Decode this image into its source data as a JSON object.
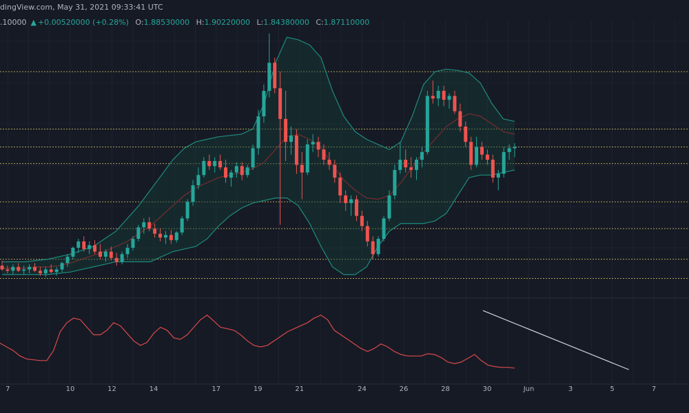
{
  "header": {
    "source": "dingView.com, May 31, 2021 09:33:41 UTC",
    "first_value": ".10000",
    "change": "+0.00520000 (+0.28%)",
    "open_key": "O:",
    "open": "1.88530000",
    "high_key": "H:",
    "high": "1.90220000",
    "low_key": "L:",
    "low": "1.84380000",
    "close_key": "C:",
    "close": "1.87110000"
  },
  "colors": {
    "background": "#161a25",
    "up": "#26a69a",
    "down": "#ef5350",
    "bands": "#1e8c7e",
    "band_fill": "#143b38",
    "middle_band": "#8b2c2c",
    "levels": "#d6c964",
    "oscillator": "#d94a4a",
    "trendline": "#d1d4dc",
    "axis_text": "#b2b5be"
  },
  "chart_data": {
    "type": "candlestick",
    "x_axis": {
      "type": "date",
      "tick_labels": [
        "7",
        "10",
        "12",
        "14",
        "17",
        "19",
        "21",
        "24",
        "26",
        "28",
        "30",
        "Jun",
        "3",
        "5",
        "7"
      ]
    },
    "price_ylim": [
      0.9,
      2.95
    ],
    "horizontal_levels": [
      2.55,
      2.1,
      1.96,
      1.83,
      1.53,
      1.32,
      1.08,
      0.93
    ],
    "candles": [
      [
        1.03,
        1.07,
        0.99,
        1.0
      ],
      [
        1.0,
        1.03,
        0.97,
        0.99
      ],
      [
        0.99,
        1.04,
        0.96,
        1.02
      ],
      [
        1.02,
        1.05,
        0.98,
        0.99
      ],
      [
        0.99,
        1.03,
        0.96,
        1.0
      ],
      [
        1.0,
        1.04,
        0.97,
        1.02
      ],
      [
        1.02,
        1.05,
        0.98,
        0.99
      ],
      [
        0.99,
        1.02,
        0.95,
        0.97
      ],
      [
        0.97,
        1.02,
        0.94,
        1.0
      ],
      [
        1.0,
        1.04,
        0.97,
        0.98
      ],
      [
        0.98,
        1.02,
        0.95,
        1.0
      ],
      [
        1.0,
        1.06,
        0.98,
        1.05
      ],
      [
        1.05,
        1.12,
        1.02,
        1.1
      ],
      [
        1.1,
        1.18,
        1.08,
        1.17
      ],
      [
        1.17,
        1.24,
        1.13,
        1.22
      ],
      [
        1.22,
        1.26,
        1.14,
        1.16
      ],
      [
        1.16,
        1.22,
        1.12,
        1.19
      ],
      [
        1.19,
        1.23,
        1.12,
        1.14
      ],
      [
        1.14,
        1.2,
        1.08,
        1.1
      ],
      [
        1.1,
        1.16,
        1.06,
        1.14
      ],
      [
        1.14,
        1.18,
        1.07,
        1.09
      ],
      [
        1.09,
        1.13,
        1.03,
        1.06
      ],
      [
        1.06,
        1.14,
        1.04,
        1.12
      ],
      [
        1.12,
        1.2,
        1.09,
        1.17
      ],
      [
        1.17,
        1.26,
        1.15,
        1.24
      ],
      [
        1.24,
        1.35,
        1.22,
        1.33
      ],
      [
        1.33,
        1.4,
        1.28,
        1.37
      ],
      [
        1.37,
        1.41,
        1.3,
        1.32
      ],
      [
        1.32,
        1.36,
        1.25,
        1.28
      ],
      [
        1.28,
        1.32,
        1.22,
        1.25
      ],
      [
        1.25,
        1.3,
        1.2,
        1.27
      ],
      [
        1.27,
        1.31,
        1.2,
        1.23
      ],
      [
        1.23,
        1.3,
        1.21,
        1.29
      ],
      [
        1.29,
        1.42,
        1.27,
        1.4
      ],
      [
        1.4,
        1.55,
        1.38,
        1.53
      ],
      [
        1.53,
        1.7,
        1.5,
        1.66
      ],
      [
        1.66,
        1.8,
        1.63,
        1.74
      ],
      [
        1.74,
        1.88,
        1.72,
        1.85
      ],
      [
        1.85,
        1.9,
        1.78,
        1.81
      ],
      [
        1.81,
        1.88,
        1.76,
        1.85
      ],
      [
        1.85,
        1.9,
        1.78,
        1.8
      ],
      [
        1.8,
        1.86,
        1.68,
        1.72
      ],
      [
        1.72,
        1.78,
        1.65,
        1.76
      ],
      [
        1.76,
        1.84,
        1.72,
        1.81
      ],
      [
        1.81,
        1.84,
        1.7,
        1.74
      ],
      [
        1.74,
        1.82,
        1.72,
        1.8
      ],
      [
        1.8,
        1.98,
        1.78,
        1.95
      ],
      [
        1.95,
        2.25,
        1.9,
        2.2
      ],
      [
        2.2,
        2.45,
        2.15,
        2.4
      ],
      [
        2.4,
        2.85,
        2.35,
        2.62
      ],
      [
        2.62,
        2.66,
        2.38,
        2.42
      ],
      [
        2.42,
        2.55,
        1.35,
        2.18
      ],
      [
        2.18,
        2.4,
        1.85,
        2.0
      ],
      [
        2.0,
        2.12,
        1.9,
        2.05
      ],
      [
        2.05,
        2.1,
        1.75,
        1.82
      ],
      [
        1.82,
        1.92,
        1.55,
        1.76
      ],
      [
        1.76,
        2.02,
        1.74,
        1.98
      ],
      [
        1.98,
        2.06,
        1.92,
        2.0
      ],
      [
        2.0,
        2.04,
        1.88,
        1.94
      ],
      [
        1.94,
        1.98,
        1.82,
        1.86
      ],
      [
        1.86,
        1.92,
        1.78,
        1.82
      ],
      [
        1.82,
        1.86,
        1.68,
        1.72
      ],
      [
        1.72,
        1.76,
        1.52,
        1.58
      ],
      [
        1.58,
        1.62,
        1.46,
        1.52
      ],
      [
        1.52,
        1.58,
        1.42,
        1.55
      ],
      [
        1.55,
        1.58,
        1.38,
        1.42
      ],
      [
        1.42,
        1.46,
        1.3,
        1.34
      ],
      [
        1.34,
        1.38,
        1.18,
        1.22
      ],
      [
        1.22,
        1.26,
        1.08,
        1.12
      ],
      [
        1.12,
        1.26,
        1.1,
        1.24
      ],
      [
        1.24,
        1.42,
        1.22,
        1.4
      ],
      [
        1.4,
        1.62,
        1.38,
        1.58
      ],
      [
        1.58,
        1.82,
        1.55,
        1.78
      ],
      [
        1.78,
        2.0,
        1.75,
        1.86
      ],
      [
        1.86,
        1.94,
        1.76,
        1.8
      ],
      [
        1.8,
        1.88,
        1.72,
        1.78
      ],
      [
        1.78,
        1.88,
        1.7,
        1.86
      ],
      [
        1.86,
        1.96,
        1.8,
        1.92
      ],
      [
        1.92,
        2.4,
        1.9,
        2.36
      ],
      [
        2.36,
        2.48,
        2.3,
        2.34
      ],
      [
        2.34,
        2.44,
        2.28,
        2.4
      ],
      [
        2.4,
        2.44,
        2.28,
        2.33
      ],
      [
        2.33,
        2.38,
        2.26,
        2.36
      ],
      [
        2.36,
        2.4,
        2.22,
        2.24
      ],
      [
        2.24,
        2.3,
        2.08,
        2.12
      ],
      [
        2.12,
        2.16,
        1.96,
        2.0
      ],
      [
        2.0,
        2.04,
        1.78,
        1.82
      ],
      [
        1.82,
        2.04,
        1.8,
        1.96
      ],
      [
        1.96,
        2.0,
        1.86,
        1.9
      ],
      [
        1.9,
        1.94,
        1.82,
        1.86
      ],
      [
        1.86,
        1.9,
        1.68,
        1.72
      ],
      [
        1.72,
        1.78,
        1.62,
        1.75
      ],
      [
        1.75,
        1.96,
        1.72,
        1.92
      ],
      [
        1.92,
        1.98,
        1.86,
        1.95
      ],
      [
        1.95,
        1.99,
        1.88,
        1.96
      ]
    ],
    "bollinger_upper": [
      1.06,
      1.06,
      1.06,
      1.07,
      1.08,
      1.1,
      1.12,
      1.15,
      1.18,
      1.24,
      1.3,
      1.4,
      1.5,
      1.62,
      1.74,
      1.86,
      1.95,
      2.0,
      2.02,
      2.04,
      2.05,
      2.06,
      2.1,
      2.3,
      2.62,
      2.82,
      2.8,
      2.76,
      2.66,
      2.4,
      2.2,
      2.08,
      2.02,
      1.98,
      1.94,
      2.0,
      2.2,
      2.45,
      2.55,
      2.57,
      2.56,
      2.54,
      2.46,
      2.3,
      2.18,
      2.16
    ],
    "bollinger_middle": [
      1.01,
      1.01,
      1.01,
      1.02,
      1.02,
      1.03,
      1.05,
      1.08,
      1.11,
      1.14,
      1.18,
      1.22,
      1.28,
      1.34,
      1.42,
      1.5,
      1.58,
      1.64,
      1.68,
      1.72,
      1.74,
      1.76,
      1.79,
      1.84,
      1.94,
      2.04,
      2.06,
      2.02,
      1.96,
      1.82,
      1.7,
      1.62,
      1.56,
      1.55,
      1.58,
      1.68,
      1.8,
      1.92,
      2.02,
      2.12,
      2.18,
      2.22,
      2.2,
      2.14,
      2.08,
      2.06
    ],
    "bollinger_lower": [
      0.96,
      0.96,
      0.96,
      0.96,
      0.96,
      0.97,
      0.98,
      1.0,
      1.02,
      1.04,
      1.06,
      1.06,
      1.06,
      1.06,
      1.1,
      1.14,
      1.16,
      1.18,
      1.24,
      1.34,
      1.42,
      1.48,
      1.52,
      1.54,
      1.56,
      1.56,
      1.5,
      1.36,
      1.18,
      1.02,
      0.96,
      0.96,
      1.02,
      1.18,
      1.3,
      1.36,
      1.36,
      1.36,
      1.38,
      1.44,
      1.58,
      1.72,
      1.74,
      1.74,
      1.76,
      1.78
    ],
    "oscillator": {
      "ylim": [
        0,
        100
      ],
      "values": [
        45,
        40,
        35,
        28,
        24,
        23,
        22,
        22,
        35,
        60,
        72,
        78,
        76,
        66,
        56,
        56,
        62,
        72,
        68,
        58,
        48,
        42,
        46,
        58,
        66,
        62,
        52,
        50,
        56,
        66,
        76,
        82,
        74,
        66,
        64,
        62,
        56,
        48,
        42,
        40,
        42,
        48,
        54,
        60,
        64,
        68,
        72,
        78,
        82,
        76,
        62,
        56,
        50,
        44,
        38,
        34,
        38,
        44,
        40,
        34,
        30,
        28,
        28,
        28,
        31,
        30,
        26,
        20,
        18,
        20,
        25,
        30,
        22,
        16,
        14,
        13,
        13,
        12
      ],
      "trendline": [
        [
          23.8,
          88
        ],
        [
          30.8,
          10
        ]
      ]
    }
  }
}
